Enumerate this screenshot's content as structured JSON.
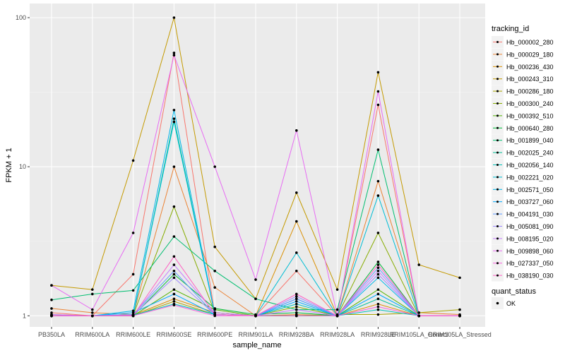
{
  "chart_data": {
    "type": "line",
    "xlabel": "sample_name",
    "ylabel": "FPKM + 1",
    "y_scale": "log10",
    "ylim": [
      0.9,
      100
    ],
    "y_ticks": [
      1,
      10,
      100
    ],
    "y_tick_labels": [
      "1",
      "10",
      "100"
    ],
    "grid": true,
    "legend_position": "right",
    "categories": [
      "PB350LA",
      "RRIM600LA",
      "RRIM600LE",
      "RRIM600SE",
      "RRIM600PE",
      "RRIM901LA",
      "RRIM928BA",
      "RRIM928LA",
      "RRIM928LE",
      "RRIM105LA_Control",
      "RRIM105LA_Stressed"
    ],
    "category_labels": [
      "PB350LA",
      "RRIM600LA",
      "RRIM600LE",
      "RRIM600SE",
      "RRIM600PE",
      "RRIM901LA",
      "RRIM928BA",
      "RRIM928LA",
      "RRIM928LE",
      "RRIM105LA_Control",
      "RRIM105LA_Stressed"
    ],
    "colour_legend": {
      "title": "tracking_id"
    },
    "shape_legend": {
      "title": "quant_status",
      "items": [
        "OK"
      ]
    },
    "series": [
      {
        "name": "Hb_000002_280",
        "color": "#F8766D",
        "values": [
          1.05,
          1.0,
          1.9,
          58,
          1.02,
          1.0,
          2.0,
          1.0,
          26,
          1.0,
          1.0
        ]
      },
      {
        "name": "Hb_000029_180",
        "color": "#EB8335",
        "values": [
          1.12,
          1.05,
          1.02,
          10,
          1.55,
          1.0,
          1.02,
          1.0,
          8.0,
          1.05,
          1.02
        ]
      },
      {
        "name": "Hb_000236_430",
        "color": "#DA8F00",
        "values": [
          1.0,
          1.0,
          1.01,
          1.3,
          1.05,
          1.0,
          4.3,
          1.0,
          1.2,
          1.0,
          1.0
        ]
      },
      {
        "name": "Hb_000243_310",
        "color": "#C49A00",
        "values": [
          1.6,
          1.5,
          11,
          100,
          2.9,
          1.3,
          6.7,
          1.5,
          43,
          2.2,
          1.8
        ]
      },
      {
        "name": "Hb_000286_180",
        "color": "#A9A400",
        "values": [
          1.0,
          1.0,
          1.0,
          1.25,
          1.02,
          1.0,
          1.0,
          1.02,
          1.02,
          1.05,
          1.1
        ]
      },
      {
        "name": "Hb_000300_240",
        "color": "#86AC00",
        "values": [
          1.02,
          1.0,
          1.01,
          5.4,
          1.05,
          1.0,
          1.15,
          1.0,
          3.6,
          1.0,
          1.0
        ]
      },
      {
        "name": "Hb_000392_510",
        "color": "#53B400",
        "values": [
          1.0,
          1.0,
          1.0,
          1.5,
          1.1,
          1.0,
          1.0,
          1.0,
          1.5,
          1.0,
          1.0
        ]
      },
      {
        "name": "Hb_000640_280",
        "color": "#00BA38",
        "values": [
          1.0,
          1.0,
          1.0,
          1.9,
          1.12,
          1.02,
          1.05,
          1.0,
          2.3,
          1.0,
          1.0
        ]
      },
      {
        "name": "Hb_001899_040",
        "color": "#00BE70",
        "values": [
          1.28,
          1.4,
          1.48,
          3.4,
          2.0,
          1.3,
          1.1,
          1.1,
          13,
          1.0,
          1.0
        ]
      },
      {
        "name": "Hb_002025_240",
        "color": "#00C097",
        "values": [
          1.0,
          1.0,
          1.0,
          21,
          1.02,
          1.0,
          1.0,
          1.0,
          1.3,
          1.0,
          1.0
        ]
      },
      {
        "name": "Hb_002056_140",
        "color": "#00C1B8",
        "values": [
          1.0,
          1.0,
          1.01,
          1.2,
          1.02,
          1.0,
          1.2,
          1.0,
          1.1,
          1.0,
          1.0
        ]
      },
      {
        "name": "Hb_002221_020",
        "color": "#00BDD4",
        "values": [
          1.0,
          1.0,
          1.01,
          20,
          1.02,
          1.0,
          2.65,
          1.0,
          6.4,
          1.0,
          1.0
        ]
      },
      {
        "name": "Hb_002571_050",
        "color": "#00B6EB",
        "values": [
          1.0,
          1.0,
          1.08,
          24,
          1.02,
          1.0,
          1.3,
          1.0,
          1.8,
          1.0,
          1.0
        ]
      },
      {
        "name": "Hb_003727_060",
        "color": "#00A9FF",
        "values": [
          1.0,
          1.0,
          1.05,
          1.4,
          1.02,
          1.0,
          1.25,
          1.0,
          1.4,
          1.0,
          1.0
        ]
      },
      {
        "name": "Hb_004191_030",
        "color": "#619CFF",
        "values": [
          1.0,
          1.0,
          1.02,
          2.0,
          1.02,
          1.0,
          1.3,
          1.0,
          2.1,
          1.0,
          1.0
        ]
      },
      {
        "name": "Hb_005081_090",
        "color": "#9E8AFF",
        "values": [
          1.0,
          1.0,
          1.01,
          1.8,
          1.02,
          1.0,
          1.35,
          1.0,
          1.9,
          1.0,
          1.0
        ]
      },
      {
        "name": "Hb_008195_020",
        "color": "#C77CFF",
        "values": [
          1.02,
          1.0,
          1.01,
          2.2,
          1.05,
          1.0,
          1.1,
          1.0,
          2.0,
          1.0,
          1.0
        ]
      },
      {
        "name": "Hb_009898_060",
        "color": "#E76BF3",
        "values": [
          1.6,
          1.1,
          3.6,
          56,
          10,
          1.75,
          17.5,
          1.0,
          32,
          1.0,
          1.0
        ]
      },
      {
        "name": "Hb_027337_050",
        "color": "#F962DD",
        "values": [
          1.0,
          1.0,
          1.0,
          1.18,
          1.0,
          1.0,
          1.0,
          1.0,
          1.15,
          1.0,
          1.0
        ]
      },
      {
        "name": "Hb_038190_030",
        "color": "#FF61C3",
        "values": [
          1.0,
          1.0,
          1.0,
          2.5,
          1.02,
          1.0,
          1.4,
          1.0,
          2.2,
          1.0,
          1.0
        ]
      }
    ]
  }
}
